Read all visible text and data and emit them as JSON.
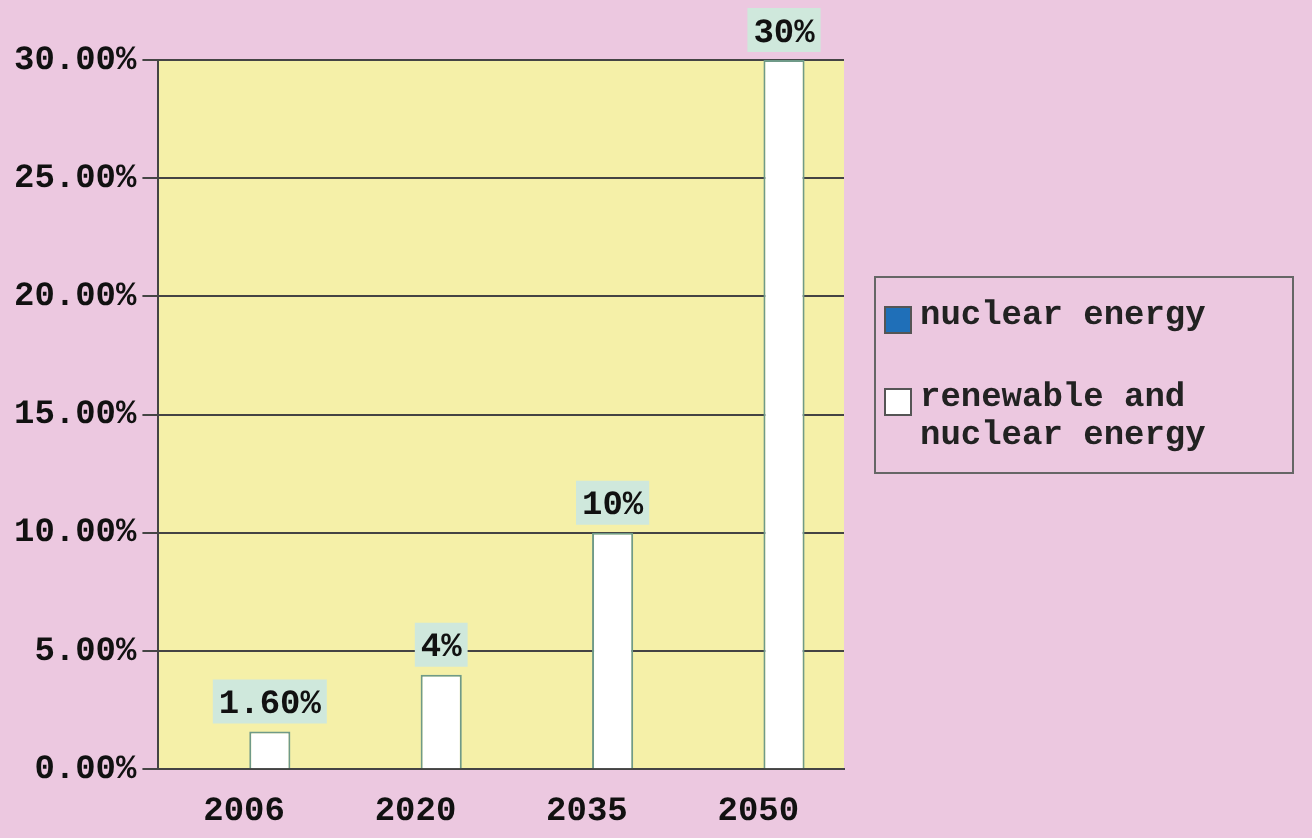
{
  "chart_data": {
    "type": "bar",
    "categories": [
      "2006",
      "2020",
      "2035",
      "2050"
    ],
    "series": [
      {
        "name": "nuclear energy",
        "color": "#1f6fb8",
        "values": [
          null,
          null,
          null,
          null
        ]
      },
      {
        "name": "renewable and nuclear energy",
        "color": "#ffffff",
        "values": [
          1.6,
          4,
          10,
          30
        ],
        "value_labels": [
          "1.60%",
          "4%",
          "10%",
          "30%"
        ]
      }
    ],
    "ylim": [
      0,
      30
    ],
    "yticks": [
      {
        "value": 0,
        "label": "0.00%"
      },
      {
        "value": 5,
        "label": "5.00%"
      },
      {
        "value": 10,
        "label": "10.00%"
      },
      {
        "value": 15,
        "label": "15.00%"
      },
      {
        "value": 20,
        "label": "20.00%"
      },
      {
        "value": 25,
        "label": "25.00%"
      },
      {
        "value": 30,
        "label": "30.00%"
      }
    ],
    "grid": "y",
    "legend": "right"
  }
}
